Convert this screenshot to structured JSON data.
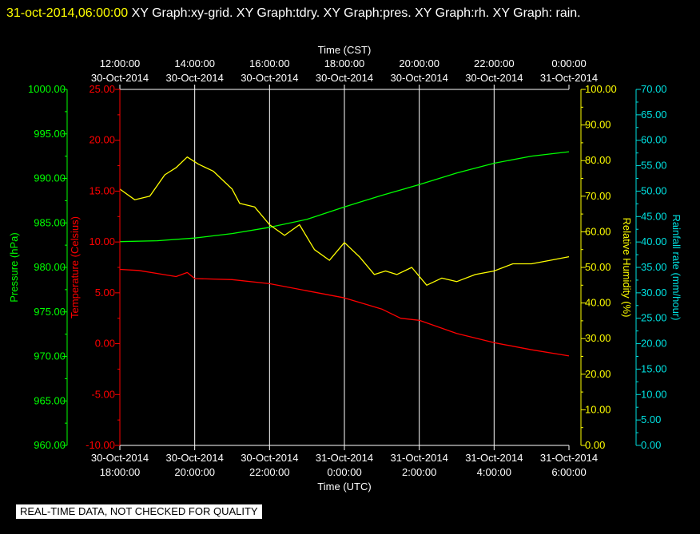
{
  "header": {
    "timestamp": "31-oct-2014,06:00:00",
    "graph_list": "XY Graph:xy-grid.  XY Graph:tdry.  XY Graph:pres.  XY Graph:rh.  XY Graph: rain."
  },
  "footer": {
    "qc_banner": "REAL-TIME DATA, NOT CHECKED FOR QUALITY"
  },
  "colors": {
    "pressure": "#00ff00",
    "temperature": "#ff0000",
    "humidity": "#ffff00",
    "rain": "#00e0e0",
    "grid": "#ffffff",
    "background": "#000000"
  },
  "chart_data": {
    "type": "line",
    "x_axis_top": {
      "label": "Time (CST)",
      "range": [
        "2014-10-30 12:00",
        "2014-10-31 00:00"
      ],
      "ticks": [
        {
          "time": "12:00:00",
          "date": "30-Oct-2014"
        },
        {
          "time": "14:00:00",
          "date": "30-Oct-2014"
        },
        {
          "time": "16:00:00",
          "date": "30-Oct-2014"
        },
        {
          "time": "18:00:00",
          "date": "30-Oct-2014"
        },
        {
          "time": "20:00:00",
          "date": "30-Oct-2014"
        },
        {
          "time": "22:00:00",
          "date": "30-Oct-2014"
        },
        {
          "time": "0:00:00",
          "date": "31-Oct-2014"
        }
      ]
    },
    "x_axis_bottom": {
      "label": "Time (UTC)",
      "range": [
        "2014-10-30 18:00",
        "2014-10-31 06:00"
      ],
      "ticks": [
        {
          "date": "30-Oct-2014",
          "time": "18:00:00"
        },
        {
          "date": "30-Oct-2014",
          "time": "20:00:00"
        },
        {
          "date": "30-Oct-2014",
          "time": "22:00:00"
        },
        {
          "date": "31-Oct-2014",
          "time": "0:00:00"
        },
        {
          "date": "31-Oct-2014",
          "time": "2:00:00"
        },
        {
          "date": "31-Oct-2014",
          "time": "4:00:00"
        },
        {
          "date": "31-Oct-2014",
          "time": "6:00:00"
        }
      ]
    },
    "grid": true,
    "axes": {
      "pressure": {
        "label": "Pressure (hPa)",
        "min": 960,
        "max": 1000,
        "ticks": [
          "960.00",
          "965.00",
          "970.00",
          "975.00",
          "980.00",
          "985.00",
          "990.00",
          "995.00",
          "1000.00"
        ]
      },
      "temperature": {
        "label": "Temperature (Celsius)",
        "min": -10,
        "max": 25,
        "ticks": [
          "-10.00",
          "-5.00",
          "0.00",
          "5.00",
          "10.00",
          "15.00",
          "20.00",
          "25.00"
        ]
      },
      "humidity": {
        "label": "Relative Humidity (%)",
        "min": 0,
        "max": 100,
        "ticks": [
          "0.00",
          "10.00",
          "20.00",
          "30.00",
          "40.00",
          "50.00",
          "60.00",
          "70.00",
          "80.00",
          "90.00",
          "100.00"
        ]
      },
      "rain": {
        "label": "Rainfall rate (mm/hour)",
        "min": 0,
        "max": 70,
        "ticks": [
          "0.00",
          "5.00",
          "10.00",
          "15.00",
          "20.00",
          "25.00",
          "30.00",
          "35.00",
          "40.00",
          "45.00",
          "50.00",
          "55.00",
          "60.00",
          "65.00",
          "70.00"
        ]
      }
    },
    "series": [
      {
        "axis": "pressure",
        "x_hours": [
          0,
          1,
          2,
          3,
          4,
          5,
          6,
          7,
          8,
          9,
          10,
          11,
          12
        ],
        "values": [
          982.9,
          983.0,
          983.3,
          983.8,
          984.5,
          985.4,
          986.8,
          988.1,
          989.3,
          990.6,
          991.7,
          992.5,
          993.0
        ]
      },
      {
        "axis": "temperature",
        "x_hours": [
          0,
          0.5,
          1,
          1.5,
          1.8,
          2,
          3,
          4,
          5,
          6,
          7,
          7.5,
          8,
          9,
          10,
          11,
          12
        ],
        "values": [
          7.3,
          7.2,
          6.9,
          6.6,
          7.0,
          6.4,
          6.3,
          5.9,
          5.2,
          4.5,
          3.4,
          2.5,
          2.3,
          1.0,
          0.1,
          -0.6,
          -1.2
        ]
      },
      {
        "axis": "humidity",
        "x_hours": [
          0,
          0.4,
          0.8,
          1.2,
          1.5,
          1.8,
          2.1,
          2.5,
          3.0,
          3.2,
          3.6,
          4.0,
          4.4,
          4.8,
          5.2,
          5.6,
          6.0,
          6.4,
          6.8,
          7.1,
          7.4,
          7.8,
          8.2,
          8.6,
          9.0,
          9.5,
          10,
          10.5,
          11,
          11.5,
          12
        ],
        "values": [
          72,
          69,
          70,
          76,
          78,
          81,
          79,
          77,
          72,
          68,
          67,
          62,
          59,
          62,
          55,
          52,
          57,
          53,
          48,
          49,
          48,
          50,
          45,
          47,
          46,
          48,
          49,
          51,
          51,
          52,
          53
        ]
      },
      {
        "axis": "rain",
        "x_hours": [],
        "values": []
      }
    ]
  }
}
